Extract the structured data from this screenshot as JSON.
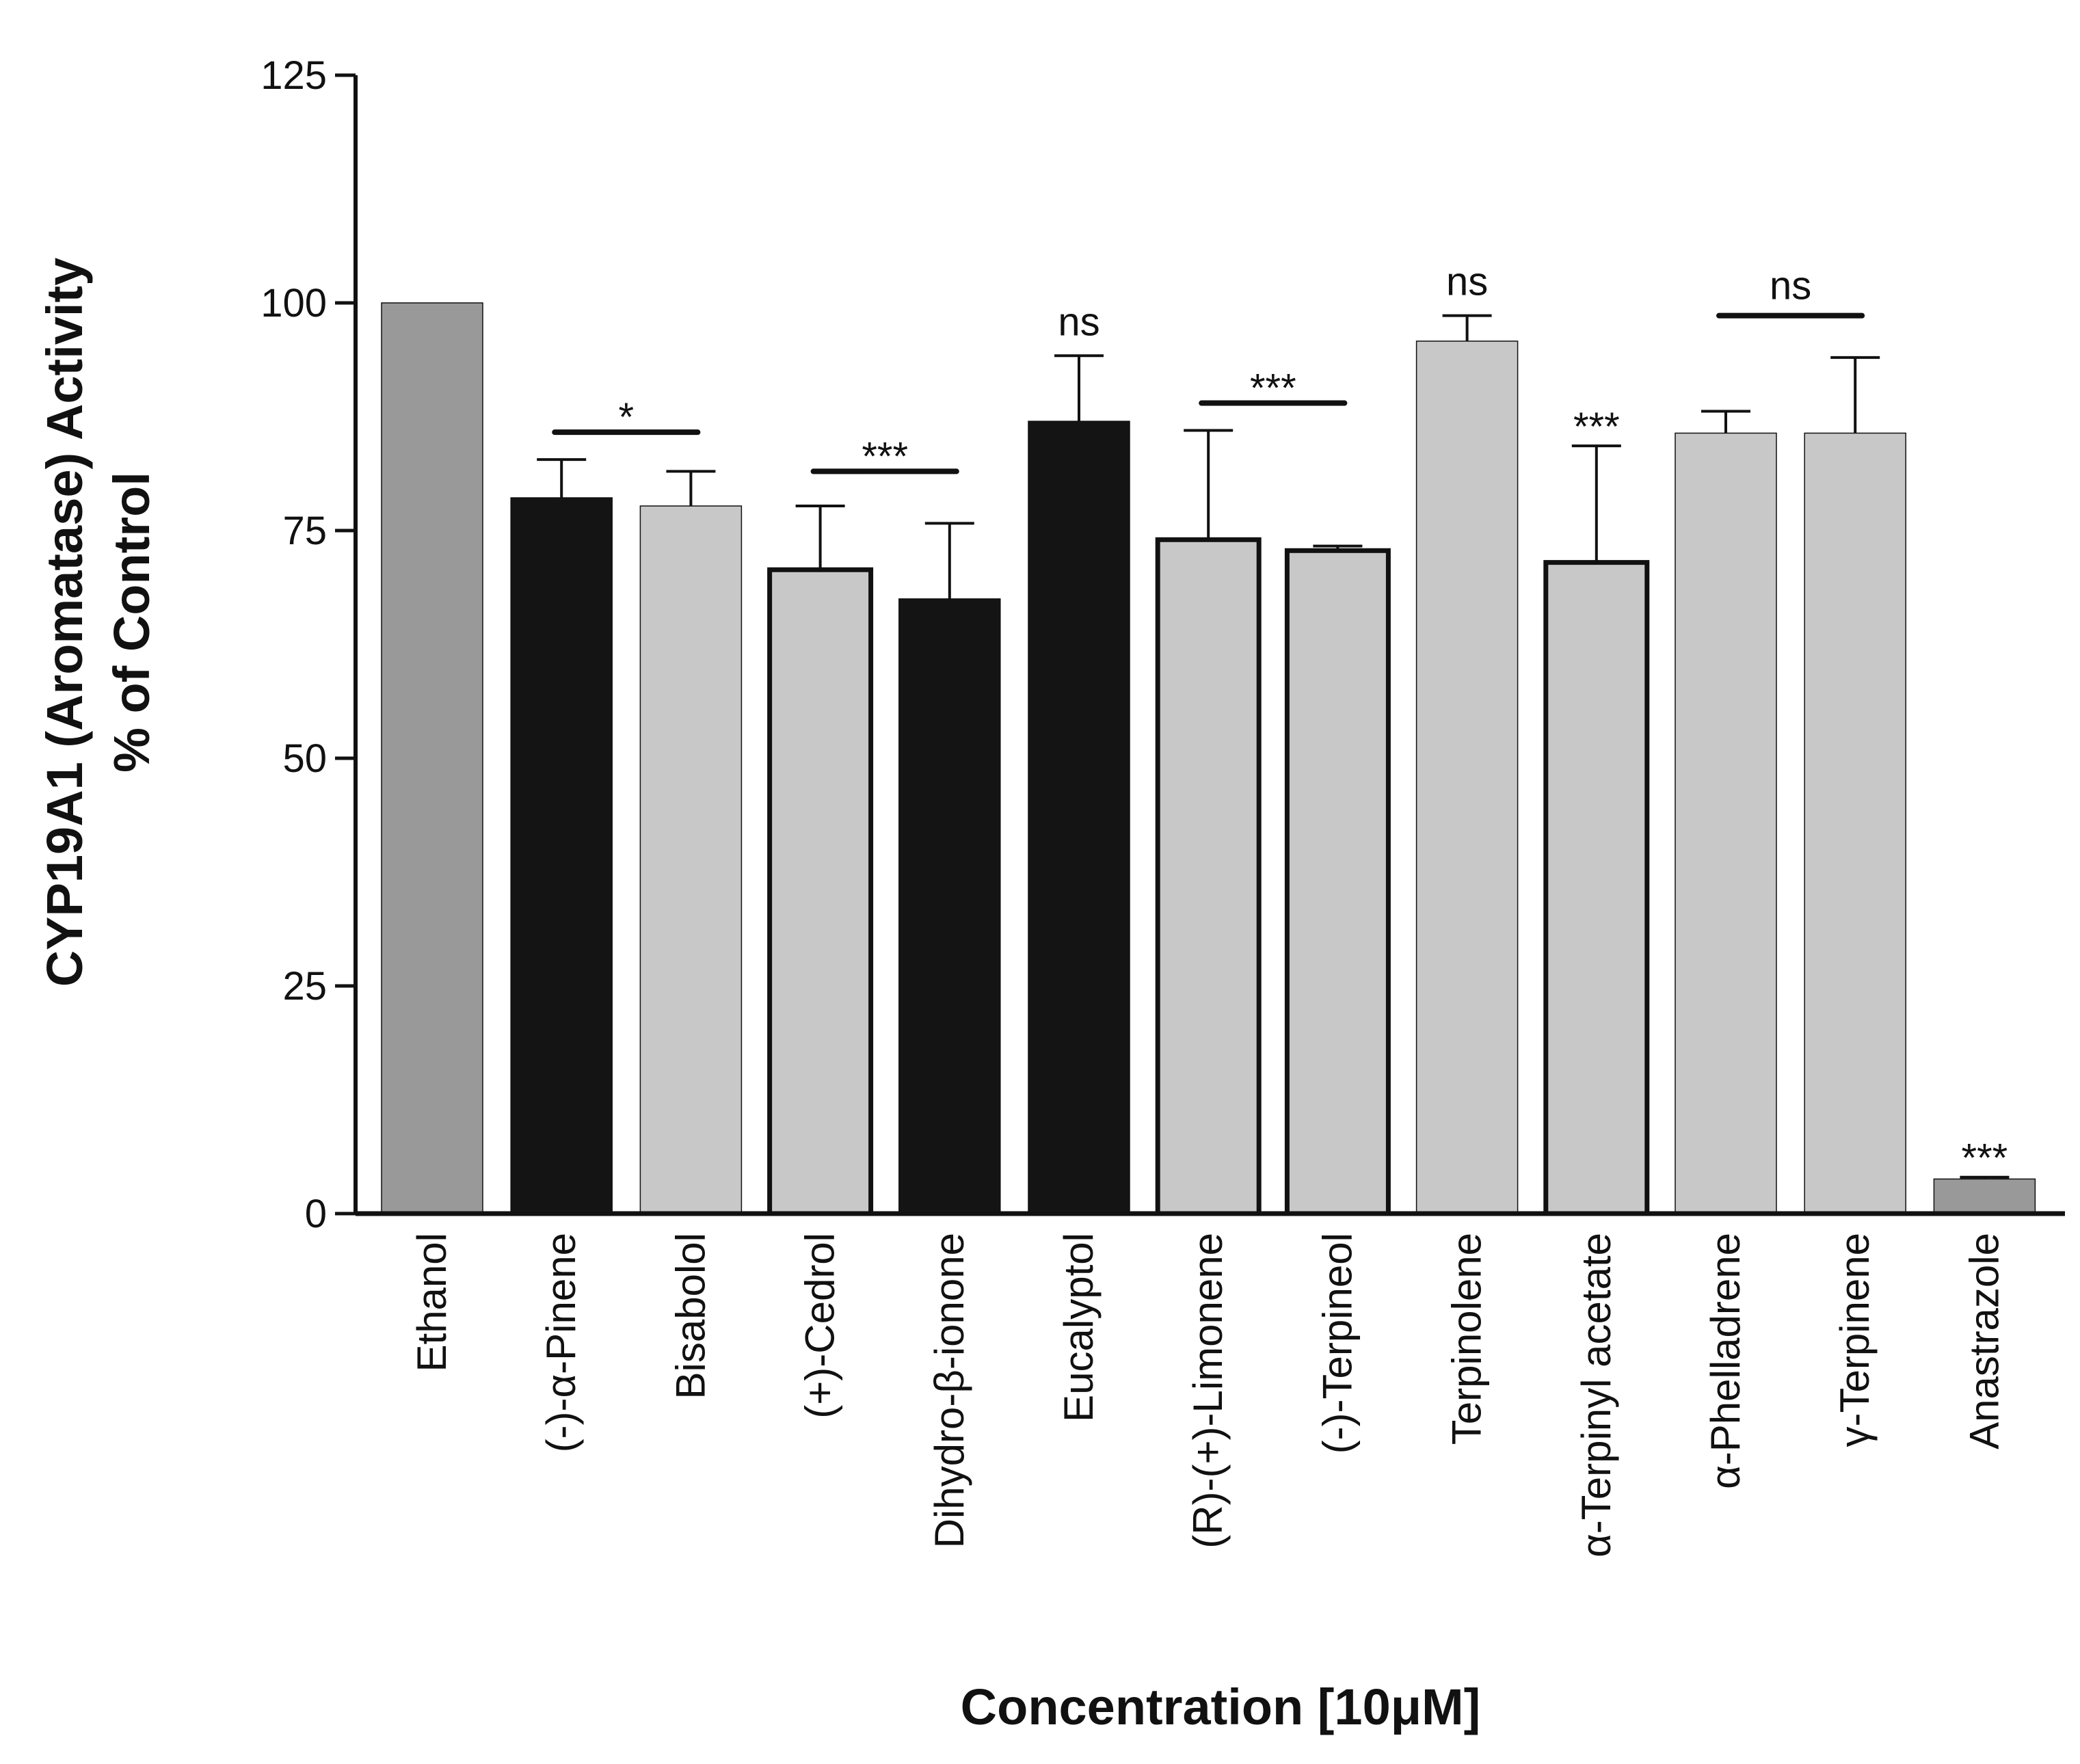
{
  "chart_data": {
    "type": "bar",
    "title": "",
    "ylabel_line1": "CYP19A1 (Aromatase) Activity",
    "ylabel_line2": "% of Control",
    "xlabel": "Concentration [10μM]",
    "ylim": [
      0,
      125
    ],
    "yticks": [
      "0",
      "25",
      "50",
      "75",
      "100",
      "125"
    ],
    "grid": false,
    "categories": [
      "Ethanol",
      "(-)-α-Pinene",
      "Bisabolol",
      "(+)-Cedrol",
      "Dihydro-β-ionone",
      "Eucalyptol",
      "(R)-(+)-Limonene",
      "(-)-Terpineol",
      "Terpinolene",
      "α-Terpinyl acetate",
      "α-Phelladrene",
      "γ-Terpinene",
      "Anastrazole"
    ],
    "values": [
      100,
      78.6,
      77.7,
      70.7,
      67.5,
      87,
      74,
      72.8,
      95.8,
      71.5,
      85.7,
      85.7,
      3.8
    ],
    "errors": [
      0,
      4.2,
      3.8,
      7,
      8.3,
      7.2,
      12,
      0.5,
      2.8,
      12.8,
      2.4,
      8.3,
      0.2
    ],
    "fills": [
      "#999999",
      "#141414",
      "#c8c8c8",
      "#c8c8c8",
      "#141414",
      "#141414",
      "#c8c8c8",
      "#c8c8c8",
      "#c8c8c8",
      "#c8c8c8",
      "#c8c8c8",
      "#c8c8c8",
      "#999999"
    ],
    "thick_outline": [
      false,
      false,
      false,
      true,
      false,
      false,
      true,
      true,
      false,
      true,
      false,
      false,
      false
    ],
    "annotations": [
      {
        "text": "*",
        "from": 1,
        "to": 2,
        "line": true,
        "y": 85.8
      },
      {
        "text": "***",
        "from": 3,
        "to": 4,
        "line": true,
        "y": 81.5
      },
      {
        "text": "ns",
        "from": 5,
        "to": 5,
        "line": false,
        "y": 94.2
      },
      {
        "text": "***",
        "from": 6,
        "to": 7,
        "line": true,
        "y": 89
      },
      {
        "text": "ns",
        "from": 8,
        "to": 8,
        "line": false,
        "y": 98.6
      },
      {
        "text": "***",
        "from": 9,
        "to": 9,
        "line": false,
        "y": 84.3
      },
      {
        "text": "ns",
        "from": 10,
        "to": 11,
        "line": true,
        "y": 98.6
      },
      {
        "text": "***",
        "from": 12,
        "to": 12,
        "line": false,
        "y": 4
      }
    ]
  }
}
